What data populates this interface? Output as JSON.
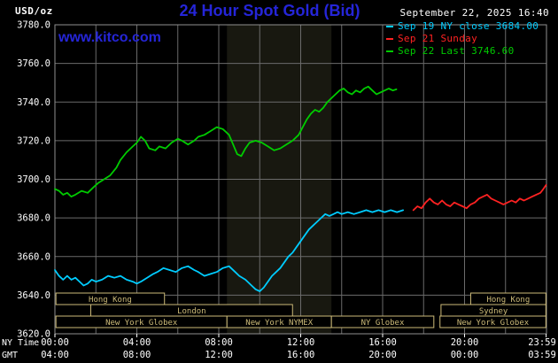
{
  "header": {
    "units": "USD/oz",
    "title": "24 Hour Spot Gold (Bid)",
    "datetime": "September 22, 2025 16:40",
    "watermark": "www.kitco.com",
    "title_color": "#2525d8",
    "watermark_color": "#2525d8"
  },
  "legend": [
    {
      "label": "Sep 19 NY close 3684.00",
      "color": "#00ccff"
    },
    {
      "label": "Sep 21 Sunday",
      "color": "#ff2222"
    },
    {
      "label": "Sep 22 Last 3746.60",
      "color": "#00cc00"
    }
  ],
  "chart_data": {
    "type": "line",
    "title": "24 Hour Spot Gold (Bid)",
    "ylabel": "USD/oz",
    "grid": true,
    "y_axis": {
      "min": 3620,
      "max": 3780,
      "step": 20,
      "tick_labels": [
        "3780.0",
        "3760.0",
        "3740.0",
        "3720.0",
        "3700.0",
        "3680.0",
        "3660.0",
        "3640.0",
        "3620.0"
      ]
    },
    "x_axis": {
      "range_hours": [
        0,
        24
      ],
      "grid_interval_hours": 2,
      "row1_label": "NY Time",
      "row2_label": "GMT",
      "ticks": [
        {
          "hour": 0,
          "ny": "00:00",
          "gmt": "04:00"
        },
        {
          "hour": 4,
          "ny": "04:00",
          "gmt": "08:00"
        },
        {
          "hour": 8,
          "ny": "08:00",
          "gmt": "12:00"
        },
        {
          "hour": 12,
          "ny": "12:00",
          "gmt": "16:00"
        },
        {
          "hour": 16,
          "ny": "16:00",
          "gmt": "20:00"
        },
        {
          "hour": 20,
          "ny": "20:00",
          "gmt": "00:00"
        },
        {
          "hour": 23.983,
          "ny": "23:59",
          "gmt": "03:59"
        }
      ]
    },
    "band": {
      "start_hour": 8.4,
      "end_hour": 13.5,
      "color": "#181810"
    },
    "sessions": {
      "color": "#ccba78",
      "rows": [
        [
          {
            "label": "Hong Kong",
            "start": 0.05,
            "end": 5.35
          },
          {
            "label": "Hong Kong",
            "start": 20.3,
            "end": 23.97
          }
        ],
        [
          {
            "label": "London",
            "start": 1.75,
            "end": 11.6
          },
          {
            "label": "Sydney",
            "start": 18.85,
            "end": 23.97
          }
        ],
        [
          {
            "label": "New York Globex",
            "start": 0.05,
            "end": 8.4
          },
          {
            "label": "New York NYMEX",
            "start": 8.4,
            "end": 13.5
          },
          {
            "label": "NY Globex",
            "start": 13.5,
            "end": 18.5
          },
          {
            "label": "New York Globex",
            "start": 18.8,
            "end": 23.97
          }
        ]
      ]
    },
    "series": [
      {
        "id": "sep19",
        "name": "Sep 19 NY close",
        "close": 3684.0,
        "color": "#00ccff",
        "points": [
          [
            0,
            3653
          ],
          [
            0.2,
            3650
          ],
          [
            0.4,
            3648
          ],
          [
            0.6,
            3650
          ],
          [
            0.8,
            3648
          ],
          [
            1,
            3649
          ],
          [
            1.2,
            3647
          ],
          [
            1.4,
            3645
          ],
          [
            1.6,
            3646
          ],
          [
            1.8,
            3648
          ],
          [
            2,
            3647
          ],
          [
            2.3,
            3648
          ],
          [
            2.6,
            3650
          ],
          [
            2.9,
            3649
          ],
          [
            3.2,
            3650
          ],
          [
            3.5,
            3648
          ],
          [
            3.8,
            3647
          ],
          [
            4,
            3646
          ],
          [
            4.2,
            3647
          ],
          [
            4.5,
            3649
          ],
          [
            4.8,
            3651
          ],
          [
            5,
            3652
          ],
          [
            5.3,
            3654
          ],
          [
            5.6,
            3653
          ],
          [
            5.9,
            3652
          ],
          [
            6.2,
            3654
          ],
          [
            6.5,
            3655
          ],
          [
            6.8,
            3653
          ],
          [
            7,
            3652
          ],
          [
            7.3,
            3650
          ],
          [
            7.6,
            3651
          ],
          [
            7.9,
            3652
          ],
          [
            8.2,
            3654
          ],
          [
            8.5,
            3655
          ],
          [
            8.8,
            3652
          ],
          [
            9,
            3650
          ],
          [
            9.3,
            3648
          ],
          [
            9.6,
            3645
          ],
          [
            9.8,
            3643
          ],
          [
            10,
            3642
          ],
          [
            10.2,
            3644
          ],
          [
            10.4,
            3647
          ],
          [
            10.6,
            3650
          ],
          [
            10.8,
            3652
          ],
          [
            11,
            3654
          ],
          [
            11.2,
            3657
          ],
          [
            11.4,
            3660
          ],
          [
            11.6,
            3662
          ],
          [
            11.8,
            3665
          ],
          [
            12,
            3668
          ],
          [
            12.2,
            3671
          ],
          [
            12.4,
            3674
          ],
          [
            12.6,
            3676
          ],
          [
            12.8,
            3678
          ],
          [
            13,
            3680
          ],
          [
            13.2,
            3682
          ],
          [
            13.4,
            3681
          ],
          [
            13.6,
            3682
          ],
          [
            13.8,
            3683
          ],
          [
            14,
            3682
          ],
          [
            14.3,
            3683
          ],
          [
            14.6,
            3682
          ],
          [
            14.9,
            3683
          ],
          [
            15.2,
            3684
          ],
          [
            15.5,
            3683
          ],
          [
            15.8,
            3684
          ],
          [
            16.1,
            3683
          ],
          [
            16.4,
            3684
          ],
          [
            16.7,
            3683
          ],
          [
            17,
            3684
          ]
        ]
      },
      {
        "id": "sep21",
        "name": "Sep 21 Sunday",
        "color": "#ff2222",
        "points": [
          [
            17.5,
            3684
          ],
          [
            17.7,
            3686
          ],
          [
            17.9,
            3685
          ],
          [
            18.1,
            3688
          ],
          [
            18.3,
            3690
          ],
          [
            18.5,
            3688
          ],
          [
            18.7,
            3687
          ],
          [
            18.9,
            3689
          ],
          [
            19.1,
            3687
          ],
          [
            19.3,
            3686
          ],
          [
            19.5,
            3688
          ],
          [
            19.7,
            3687
          ],
          [
            19.9,
            3686
          ],
          [
            20.1,
            3685
          ],
          [
            20.3,
            3687
          ],
          [
            20.5,
            3688
          ],
          [
            20.7,
            3690
          ],
          [
            20.9,
            3691
          ],
          [
            21.1,
            3692
          ],
          [
            21.3,
            3690
          ],
          [
            21.5,
            3689
          ],
          [
            21.7,
            3688
          ],
          [
            21.9,
            3687
          ],
          [
            22.1,
            3688
          ],
          [
            22.3,
            3689
          ],
          [
            22.5,
            3688
          ],
          [
            22.7,
            3690
          ],
          [
            22.9,
            3689
          ],
          [
            23.1,
            3690
          ],
          [
            23.3,
            3691
          ],
          [
            23.5,
            3692
          ],
          [
            23.7,
            3693
          ],
          [
            23.85,
            3695
          ],
          [
            23.98,
            3697
          ]
        ]
      },
      {
        "id": "sep22",
        "name": "Sep 22",
        "last": 3746.6,
        "color": "#00cc00",
        "points": [
          [
            0,
            3695
          ],
          [
            0.2,
            3694
          ],
          [
            0.4,
            3692
          ],
          [
            0.6,
            3693
          ],
          [
            0.8,
            3691
          ],
          [
            1,
            3692
          ],
          [
            1.3,
            3694
          ],
          [
            1.6,
            3693
          ],
          [
            1.9,
            3696
          ],
          [
            2.1,
            3698
          ],
          [
            2.4,
            3700
          ],
          [
            2.7,
            3702
          ],
          [
            3,
            3706
          ],
          [
            3.2,
            3710
          ],
          [
            3.5,
            3714
          ],
          [
            3.8,
            3717
          ],
          [
            4,
            3719
          ],
          [
            4.2,
            3722
          ],
          [
            4.4,
            3720
          ],
          [
            4.6,
            3716
          ],
          [
            4.9,
            3715
          ],
          [
            5.1,
            3717
          ],
          [
            5.4,
            3716
          ],
          [
            5.7,
            3719
          ],
          [
            6,
            3721
          ],
          [
            6.2,
            3720
          ],
          [
            6.5,
            3718
          ],
          [
            6.8,
            3720
          ],
          [
            7,
            3722
          ],
          [
            7.3,
            3723
          ],
          [
            7.6,
            3725
          ],
          [
            7.9,
            3727
          ],
          [
            8.2,
            3726
          ],
          [
            8.5,
            3723
          ],
          [
            8.7,
            3718
          ],
          [
            8.9,
            3713
          ],
          [
            9.1,
            3712
          ],
          [
            9.3,
            3716
          ],
          [
            9.5,
            3719
          ],
          [
            9.8,
            3720
          ],
          [
            10.1,
            3719
          ],
          [
            10.4,
            3717
          ],
          [
            10.7,
            3715
          ],
          [
            11,
            3716
          ],
          [
            11.3,
            3718
          ],
          [
            11.6,
            3720
          ],
          [
            11.9,
            3723
          ],
          [
            12.1,
            3727
          ],
          [
            12.3,
            3731
          ],
          [
            12.5,
            3734
          ],
          [
            12.7,
            3736
          ],
          [
            12.9,
            3735
          ],
          [
            13.1,
            3737
          ],
          [
            13.3,
            3740
          ],
          [
            13.5,
            3742
          ],
          [
            13.7,
            3744
          ],
          [
            13.9,
            3746
          ],
          [
            14.1,
            3747
          ],
          [
            14.3,
            3745
          ],
          [
            14.5,
            3744
          ],
          [
            14.7,
            3746
          ],
          [
            14.9,
            3745
          ],
          [
            15.1,
            3747
          ],
          [
            15.3,
            3748
          ],
          [
            15.5,
            3746
          ],
          [
            15.7,
            3744
          ],
          [
            15.9,
            3745
          ],
          [
            16.1,
            3746
          ],
          [
            16.3,
            3747
          ],
          [
            16.5,
            3746
          ],
          [
            16.67,
            3746.6
          ]
        ]
      }
    ]
  }
}
